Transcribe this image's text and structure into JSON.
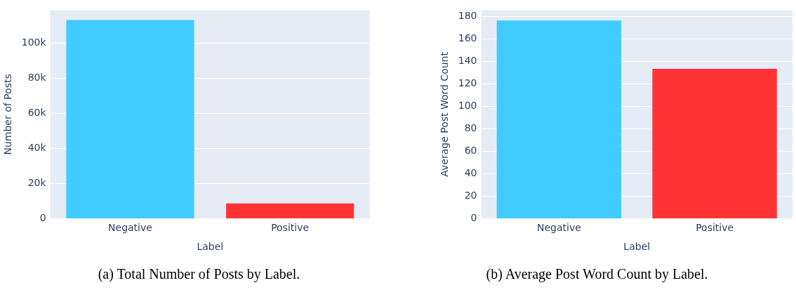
{
  "chart_data": [
    {
      "type": "bar",
      "xlabel": "Label",
      "ylabel": "Number of Posts",
      "categories": [
        "Negative",
        "Positive"
      ],
      "values": [
        113000,
        8600
      ],
      "colors": [
        "#40ccff",
        "#ff3333"
      ],
      "ylim": [
        0,
        118650
      ],
      "yticks": [
        0,
        {
          "value": 20000,
          "label": "20k"
        },
        {
          "value": 40000,
          "label": "40k"
        },
        {
          "value": 60000,
          "label": "60k"
        },
        {
          "value": 80000,
          "label": "80k"
        },
        {
          "value": 100000,
          "label": "100k"
        }
      ],
      "grid": "y",
      "legend": false,
      "annotations": [
        "(a) Total Number of Posts by Label."
      ]
    },
    {
      "type": "bar",
      "xlabel": "Label",
      "ylabel": "Average Post Word Count",
      "categories": [
        "Negative",
        "Positive"
      ],
      "values": [
        176.5,
        133.5
      ],
      "colors": [
        "#40ccff",
        "#ff3333"
      ],
      "ylim": [
        0,
        185.8
      ],
      "yticks": [
        0,
        20,
        40,
        60,
        80,
        100,
        120,
        140,
        160,
        180
      ],
      "grid": "y",
      "legend": false,
      "annotations": [
        "(b) Average Post Word Count by Label."
      ]
    }
  ]
}
